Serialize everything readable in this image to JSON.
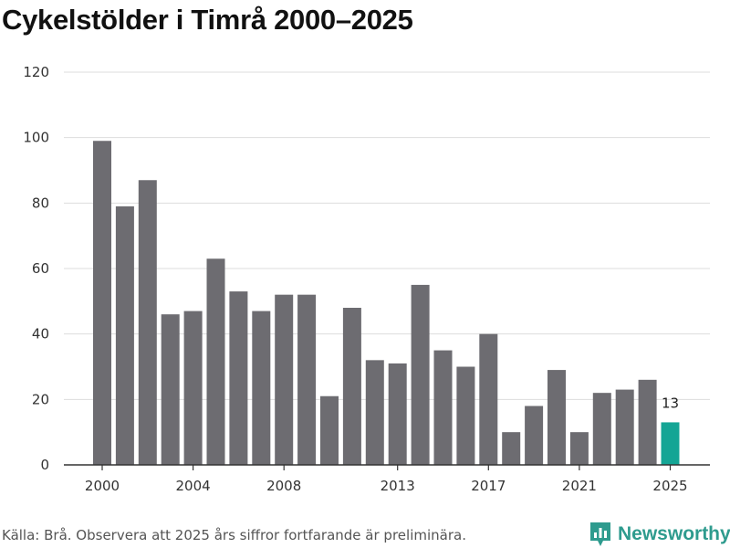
{
  "chart_data": {
    "type": "bar",
    "title": "Cykelstölder i Timrå 2000–2025",
    "xlabel": "",
    "ylabel": "",
    "ylim": [
      0,
      120
    ],
    "yticks": [
      0,
      20,
      40,
      60,
      80,
      100,
      120
    ],
    "xticks": [
      2000,
      2004,
      2008,
      2013,
      2017,
      2021,
      2025
    ],
    "categories": [
      2000,
      2001,
      2002,
      2003,
      2004,
      2005,
      2006,
      2007,
      2008,
      2009,
      2010,
      2011,
      2012,
      2013,
      2014,
      2015,
      2016,
      2017,
      2018,
      2019,
      2020,
      2021,
      2022,
      2023,
      2024,
      2025
    ],
    "values": [
      99,
      79,
      87,
      46,
      47,
      63,
      53,
      47,
      52,
      52,
      21,
      48,
      32,
      31,
      55,
      35,
      30,
      40,
      10,
      18,
      29,
      10,
      22,
      23,
      26,
      13
    ],
    "highlight_index": 25,
    "highlight_label": "13",
    "grid": true
  },
  "colors": {
    "bar": "#6d6c71",
    "highlight": "#14a595",
    "grid": "#dddddd",
    "axis": "#333333",
    "brand": "#2e9b8e"
  },
  "footer": {
    "source": "Källa: Brå. Observera att 2025 års siffror fortfarande är preliminära."
  },
  "brand": {
    "name": "Newsworthy",
    "icon": "newsworthy-logo-icon"
  }
}
